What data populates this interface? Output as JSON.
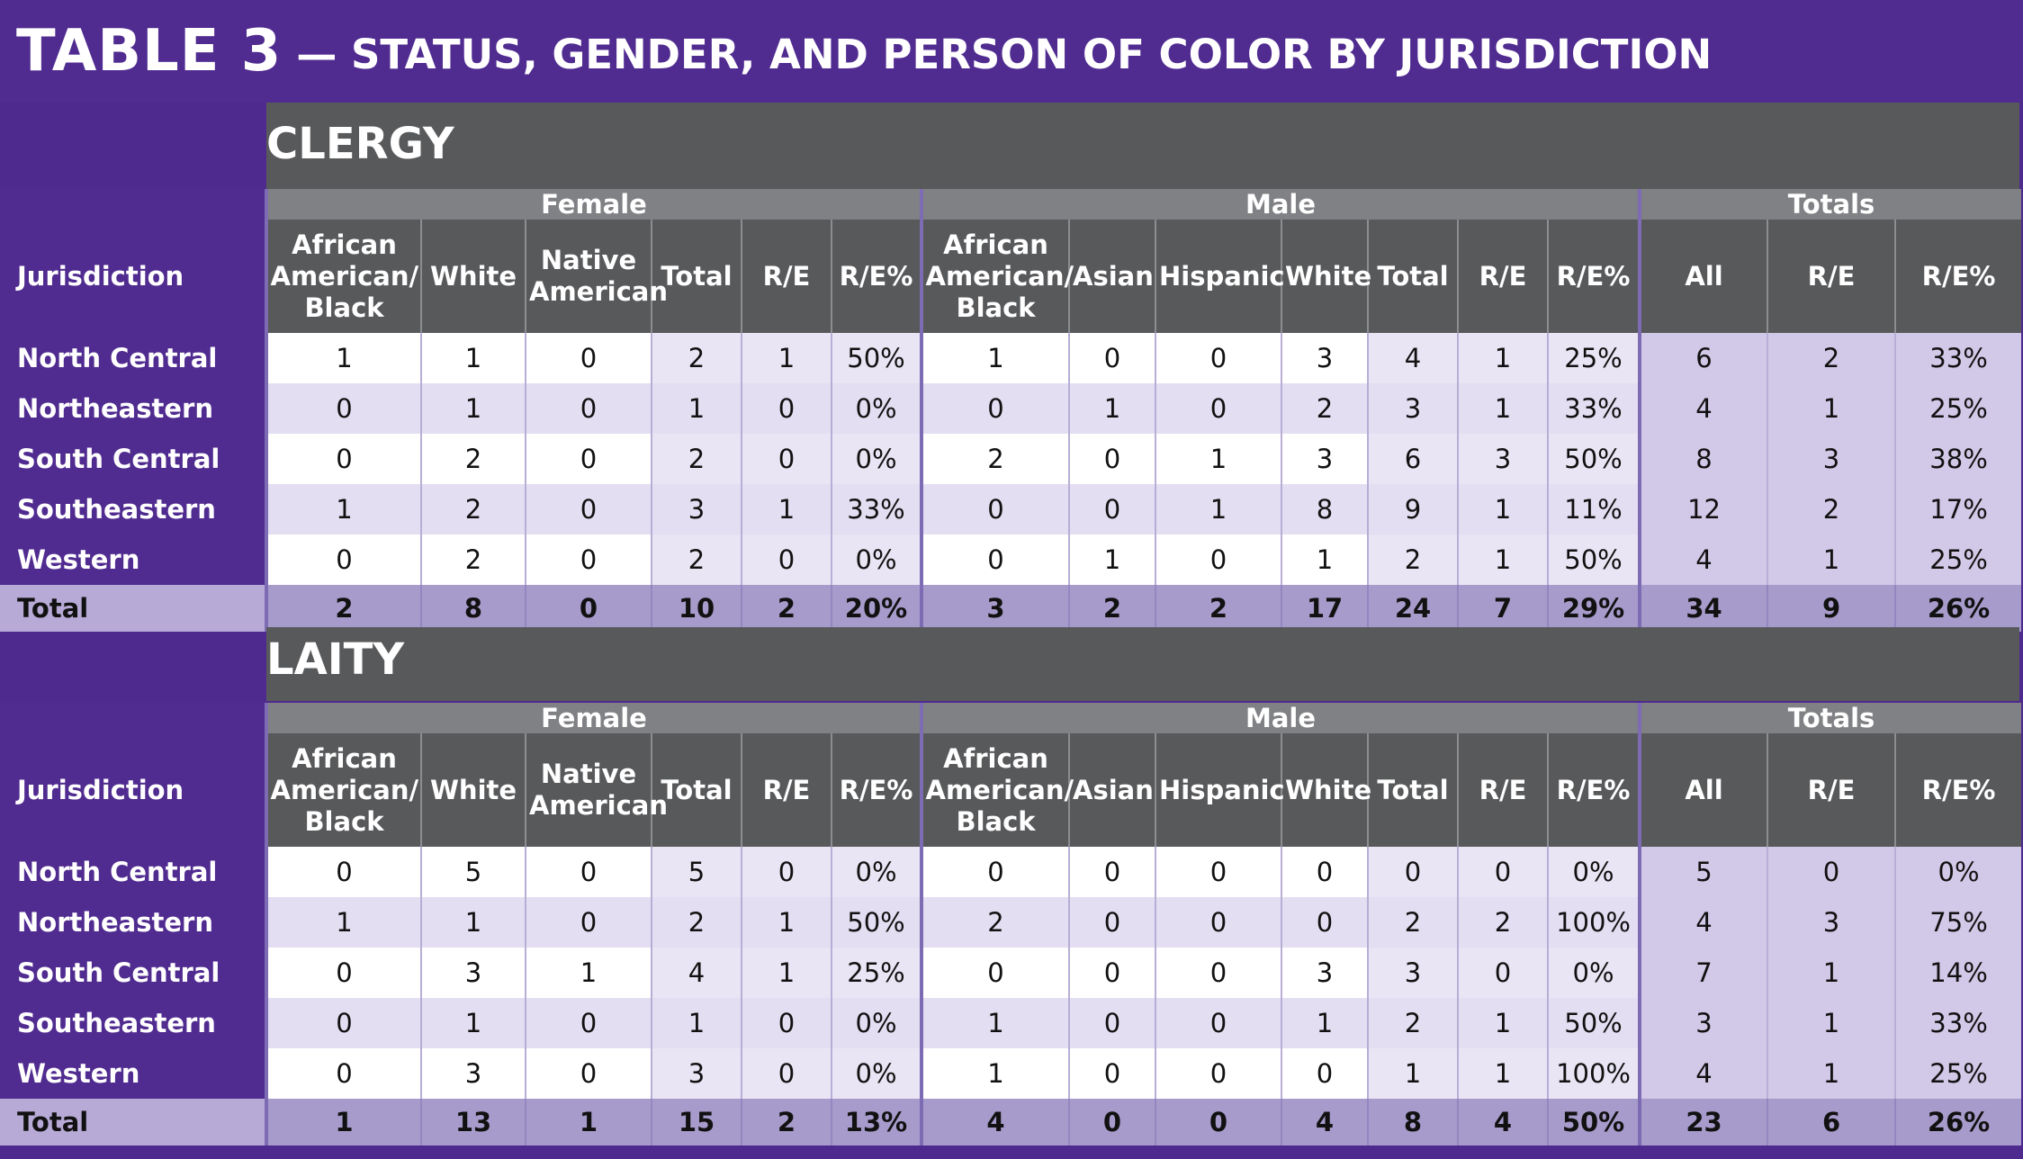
{
  "title": {
    "main": "TABLE 3",
    "sub": "— STATUS, GENDER, AND PERSON OF COLOR BY JURISDICTION"
  },
  "groups": {
    "female": "Female",
    "male": "Male",
    "totals": "Totals"
  },
  "headers": {
    "jurisdiction": "Jurisdiction",
    "female": [
      "African American/ Black",
      "White",
      "Native American",
      "Total",
      "R/E",
      "R/E%"
    ],
    "male": [
      "African American/ Black",
      "Asian",
      "Hispanic",
      "White",
      "Total",
      "R/E",
      "R/E%"
    ],
    "totals": [
      "All",
      "R/E",
      "R/E%"
    ]
  },
  "sections": [
    {
      "title": "CLERGY",
      "rows": [
        [
          "North Central",
          "1",
          "1",
          "0",
          "2",
          "1",
          "50%",
          "1",
          "0",
          "0",
          "3",
          "4",
          "1",
          "25%",
          "6",
          "2",
          "33%"
        ],
        [
          "Northeastern",
          "0",
          "1",
          "0",
          "1",
          "0",
          "0%",
          "0",
          "1",
          "0",
          "2",
          "3",
          "1",
          "33%",
          "4",
          "1",
          "25%"
        ],
        [
          "South Central",
          "0",
          "2",
          "0",
          "2",
          "0",
          "0%",
          "2",
          "0",
          "1",
          "3",
          "6",
          "3",
          "50%",
          "8",
          "3",
          "38%"
        ],
        [
          "Southeastern",
          "1",
          "2",
          "0",
          "3",
          "1",
          "33%",
          "0",
          "0",
          "1",
          "8",
          "9",
          "1",
          "11%",
          "12",
          "2",
          "17%"
        ],
        [
          "Western",
          "0",
          "2",
          "0",
          "2",
          "0",
          "0%",
          "0",
          "1",
          "0",
          "1",
          "2",
          "1",
          "50%",
          "4",
          "1",
          "25%"
        ]
      ],
      "total": [
        "Total",
        "2",
        "8",
        "0",
        "10",
        "2",
        "20%",
        "3",
        "2",
        "2",
        "17",
        "24",
        "7",
        "29%",
        "34",
        "9",
        "26%"
      ]
    },
    {
      "title": "LAITY",
      "rows": [
        [
          "North Central",
          "0",
          "5",
          "0",
          "5",
          "0",
          "0%",
          "0",
          "0",
          "0",
          "0",
          "0",
          "0",
          "0%",
          "5",
          "0",
          "0%"
        ],
        [
          "Northeastern",
          "1",
          "1",
          "0",
          "2",
          "1",
          "50%",
          "2",
          "0",
          "0",
          "0",
          "2",
          "2",
          "100%",
          "4",
          "3",
          "75%"
        ],
        [
          "South Central",
          "0",
          "3",
          "1",
          "4",
          "1",
          "25%",
          "0",
          "0",
          "0",
          "3",
          "3",
          "0",
          "0%",
          "7",
          "1",
          "14%"
        ],
        [
          "Southeastern",
          "0",
          "1",
          "0",
          "1",
          "0",
          "0%",
          "1",
          "0",
          "0",
          "1",
          "2",
          "1",
          "50%",
          "3",
          "1",
          "33%"
        ],
        [
          "Western",
          "0",
          "3",
          "0",
          "3",
          "0",
          "0%",
          "1",
          "0",
          "0",
          "0",
          "1",
          "1",
          "100%",
          "4",
          "1",
          "25%"
        ]
      ],
      "total": [
        "Total",
        "1",
        "13",
        "1",
        "15",
        "2",
        "13%",
        "4",
        "0",
        "0",
        "4",
        "8",
        "4",
        "50%",
        "23",
        "6",
        "26%"
      ]
    }
  ]
}
